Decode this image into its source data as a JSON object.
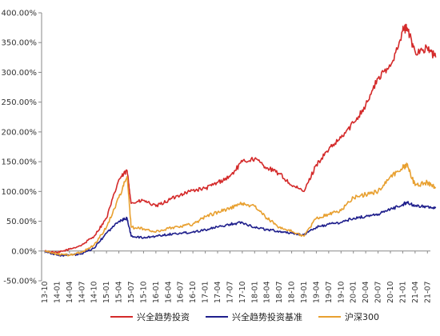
{
  "chart_data": {
    "type": "line",
    "title": "",
    "xlabel": "",
    "ylabel": "",
    "ylim": [
      -50,
      400
    ],
    "yticks": [
      "-50.00%",
      "0.00%",
      "50.00%",
      "100.00%",
      "150.00%",
      "200.00%",
      "250.00%",
      "300.00%",
      "350.00%",
      "400.00%"
    ],
    "y_tick_values": [
      -50,
      0,
      50,
      100,
      150,
      200,
      250,
      300,
      350,
      400
    ],
    "x_tick_labels": [
      "13-10",
      "14-01",
      "14-04",
      "14-07",
      "14-10",
      "15-01",
      "15-04",
      "15-07",
      "15-10",
      "16-01",
      "16-04",
      "16-07",
      "16-10",
      "17-01",
      "17-04",
      "17-07",
      "17-10",
      "18-01",
      "18-04",
      "18-07",
      "18-10",
      "19-01",
      "19-04",
      "19-07",
      "19-10",
      "20-01",
      "20-04",
      "20-07",
      "20-10",
      "21-01",
      "21-04",
      "21-07"
    ],
    "x": [
      "13-10",
      "14-01",
      "14-04",
      "14-07",
      "14-10",
      "15-01",
      "15-04",
      "15-06",
      "15-07",
      "15-10",
      "16-01",
      "16-04",
      "16-07",
      "16-10",
      "17-01",
      "17-04",
      "17-07",
      "17-10",
      "18-01",
      "18-04",
      "18-07",
      "18-10",
      "19-01",
      "19-04",
      "19-07",
      "19-10",
      "20-01",
      "20-04",
      "20-07",
      "20-10",
      "21-01",
      "21-02",
      "21-04",
      "21-07",
      "21-09"
    ],
    "grid": false,
    "legend_position": "bottom",
    "series": [
      {
        "name": "兴全趋势投资",
        "color": "#d42a2a",
        "values": [
          0,
          -3,
          3,
          10,
          25,
          55,
          120,
          135,
          80,
          85,
          75,
          85,
          95,
          102,
          105,
          115,
          125,
          150,
          155,
          140,
          130,
          110,
          100,
          145,
          170,
          190,
          215,
          245,
          290,
          310,
          370,
          375,
          335,
          340,
          325
        ]
      },
      {
        "name": "兴全趋势投资基准",
        "color": "#1f1f8c",
        "values": [
          0,
          -7,
          -7,
          -5,
          5,
          30,
          50,
          55,
          25,
          22,
          25,
          28,
          30,
          32,
          36,
          40,
          45,
          48,
          40,
          36,
          33,
          30,
          27,
          40,
          45,
          48,
          55,
          58,
          62,
          70,
          78,
          82,
          75,
          75,
          72
        ]
      },
      {
        "name": "沪深300",
        "color": "#e8a030",
        "values": [
          0,
          -5,
          -7,
          -2,
          10,
          40,
          90,
          125,
          40,
          37,
          32,
          38,
          42,
          45,
          58,
          65,
          72,
          80,
          75,
          55,
          40,
          33,
          25,
          55,
          62,
          68,
          90,
          95,
          100,
          125,
          140,
          145,
          110,
          115,
          107
        ]
      }
    ]
  }
}
